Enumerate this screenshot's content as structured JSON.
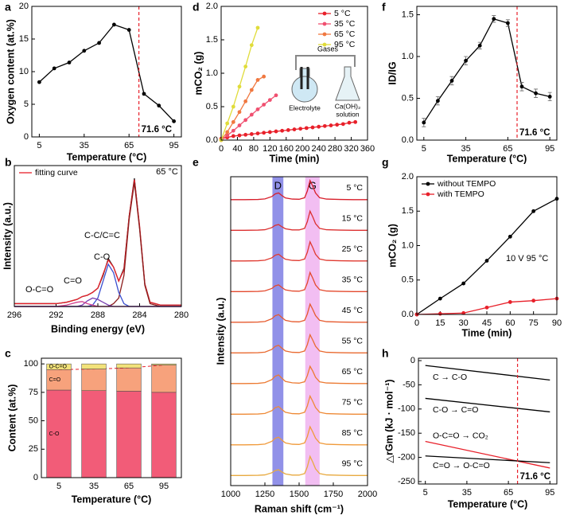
{
  "chart_data": [
    {
      "type": "line",
      "label": "a",
      "xlabel": "Temperature (°C)",
      "ylabel": "Oxygen content (at.%)",
      "x": [
        5,
        15,
        25,
        35,
        45,
        55,
        65,
        75,
        85,
        95
      ],
      "series": [
        {
          "color": "#000000",
          "markers": true,
          "values": [
            8.4,
            10.5,
            11.4,
            13.2,
            14.4,
            17.2,
            16.4,
            6.6,
            4.8,
            2.4
          ]
        }
      ],
      "xlim": [
        0,
        100
      ],
      "ylim": [
        0,
        20
      ],
      "xticks": [
        5,
        35,
        65,
        95
      ],
      "yticks": [
        0,
        5,
        10,
        15,
        20
      ],
      "vline": {
        "x": 71.6,
        "label": "71.6 °C",
        "color": "#e8202a"
      }
    },
    {
      "type": "line",
      "label": "b",
      "xlabel": "Binding energy (eV)",
      "ylabel": "Intensity (a.u.)",
      "x": [
        296,
        294,
        292,
        291,
        290,
        289.5,
        289,
        288.5,
        288,
        287.5,
        287,
        286.5,
        286,
        285.5,
        285,
        284.5,
        284,
        283.5,
        283,
        282,
        280
      ],
      "xlim": [
        296,
        280
      ],
      "ylim": [
        0,
        1
      ],
      "xticks": [
        296,
        292,
        288,
        284,
        280
      ],
      "legend": "upper left",
      "series": [
        {
          "color": "#222222",
          "values": [
            0.02,
            0.02,
            0.02,
            0.03,
            0.05,
            0.07,
            0.08,
            0.1,
            0.13,
            0.22,
            0.34,
            0.28,
            0.18,
            0.27,
            0.64,
            0.91,
            0.56,
            0.16,
            0.03,
            0.01,
            0.01
          ]
        },
        {
          "name": "fitting curve",
          "color": "#e8202a",
          "values": [
            0.02,
            0.02,
            0.02,
            0.03,
            0.05,
            0.07,
            0.08,
            0.1,
            0.13,
            0.23,
            0.33,
            0.28,
            0.18,
            0.26,
            0.64,
            0.9,
            0.57,
            0.16,
            0.03,
            0.01,
            0.01
          ]
        },
        {
          "color": "#8b1c1c",
          "values": [
            0,
            0,
            0,
            0,
            0,
            0,
            0,
            0,
            0,
            0,
            0,
            0.02,
            0.06,
            0.22,
            0.62,
            0.88,
            0.55,
            0.15,
            0.02,
            0,
            0
          ]
        },
        {
          "color": "#3a4fd0",
          "values": [
            0,
            0,
            0,
            0,
            0,
            0,
            0,
            0.01,
            0.06,
            0.18,
            0.3,
            0.24,
            0.1,
            0.02,
            0,
            0,
            0,
            0,
            0,
            0,
            0
          ]
        },
        {
          "color": "#7a3fb0",
          "values": [
            0,
            0,
            0,
            0,
            0,
            0.01,
            0.04,
            0.06,
            0.05,
            0.03,
            0.01,
            0,
            0,
            0,
            0,
            0,
            0,
            0,
            0,
            0,
            0
          ]
        },
        {
          "color": "#d04090",
          "values": [
            0,
            0,
            0,
            0.01,
            0.03,
            0.035,
            0.02,
            0.01,
            0,
            0,
            0,
            0,
            0,
            0,
            0,
            0,
            0,
            0,
            0,
            0,
            0
          ]
        }
      ],
      "annotations": [
        "65 °C",
        "C-C/C=C",
        "C-O",
        "C=O",
        "O-C=O"
      ]
    },
    {
      "type": "stacked_bar",
      "label": "c",
      "xlabel": "Temperature (°C)",
      "ylabel": "Content (at.%)",
      "categories": [
        "5",
        "35",
        "65",
        "95"
      ],
      "series": [
        {
          "name": "C-O",
          "color": "#f25c78",
          "values": [
            77,
            76.5,
            76,
            75
          ]
        },
        {
          "name": "C=O",
          "color": "#f7a27c",
          "values": [
            18,
            19,
            20.5,
            24
          ]
        },
        {
          "name": "O-C=O",
          "color": "#f2e27a",
          "values": [
            5,
            4.5,
            3.5,
            1
          ]
        }
      ],
      "ylim": [
        0,
        105
      ],
      "yticks": [
        0,
        25,
        50,
        75,
        100
      ],
      "trend_line_color": "#e8202a"
    },
    {
      "type": "line",
      "label": "d",
      "xlabel": "Time (min)",
      "ylabel": "mCO₂ (g)",
      "xlim": [
        0,
        360
      ],
      "ylim": [
        0,
        2
      ],
      "xticks": [
        0,
        40,
        80,
        120,
        160,
        200,
        240,
        280,
        320,
        360
      ],
      "yticks": [
        {
          "value": 0,
          "label": "0.0"
        },
        0.5,
        {
          "value": 1,
          "label": "1.0"
        },
        1.5,
        {
          "value": 2,
          "label": "2.0"
        }
      ],
      "legend": "upper right",
      "series": [
        {
          "name": "5 °C",
          "color": "#e8202a",
          "markers": true,
          "x": [
            0,
            15,
            30,
            45,
            60,
            75,
            90,
            105,
            120,
            135,
            150,
            165,
            180,
            195,
            210,
            225,
            240,
            255,
            270,
            285,
            300,
            315,
            330
          ],
          "values": [
            0.02,
            0.04,
            0.06,
            0.07,
            0.08,
            0.09,
            0.1,
            0.11,
            0.12,
            0.13,
            0.14,
            0.15,
            0.16,
            0.17,
            0.18,
            0.19,
            0.2,
            0.21,
            0.22,
            0.23,
            0.24,
            0.26,
            0.27
          ]
        },
        {
          "name": "35 °C",
          "color": "#f05070",
          "markers": true,
          "x": [
            0,
            15,
            30,
            45,
            60,
            75,
            90,
            105,
            120,
            135
          ],
          "values": [
            0,
            0.07,
            0.14,
            0.22,
            0.3,
            0.38,
            0.46,
            0.53,
            0.6,
            0.67
          ]
        },
        {
          "name": "65 °C",
          "color": "#f07840",
          "markers": true,
          "x": [
            0,
            15,
            30,
            45,
            60,
            75,
            90,
            105
          ],
          "values": [
            0,
            0.12,
            0.27,
            0.42,
            0.58,
            0.75,
            0.9,
            0.95
          ]
        },
        {
          "name": "95 °C",
          "color": "#e0dc3a",
          "markers": true,
          "x": [
            0,
            15,
            30,
            45,
            60,
            75,
            90
          ],
          "values": [
            0,
            0.25,
            0.5,
            0.8,
            1.1,
            1.42,
            1.68
          ]
        }
      ],
      "inset_labels": [
        "Gases",
        "Electrolyte",
        "Ca(OH)₂",
        "solution"
      ]
    },
    {
      "type": "waterfall",
      "label": "e",
      "xlabel": "Raman shift (cm⁻¹)",
      "ylabel": "Intensity (a.u.)",
      "x": [
        1000,
        1100,
        1200,
        1250,
        1300,
        1325,
        1350,
        1375,
        1400,
        1450,
        1500,
        1540,
        1560,
        1580,
        1600,
        1620,
        1650,
        1700,
        1800,
        1900,
        2000
      ],
      "xlim": [
        1000,
        2000
      ],
      "xticks": [
        1000,
        1250,
        1500,
        1750,
        2000
      ],
      "bands": [
        {
          "label": "D",
          "range": [
            1305,
            1385
          ],
          "color": "#6c6ce0"
        },
        {
          "label": "G",
          "range": [
            1545,
            1650
          ],
          "color": "#eea8ee"
        }
      ],
      "series": [
        {
          "name": "5 °C",
          "color": "#d81e2a",
          "values": [
            0.05,
            0.05,
            0.06,
            0.09,
            0.21,
            0.35,
            0.4,
            0.26,
            0.14,
            0.08,
            0.07,
            0.15,
            0.5,
            1.05,
            0.75,
            0.4,
            0.15,
            0.08,
            0.06,
            0.05,
            0.05
          ]
        },
        {
          "name": "15 °C",
          "color": "#dc3030",
          "values": [
            0.05,
            0.05,
            0.06,
            0.08,
            0.19,
            0.31,
            0.35,
            0.23,
            0.13,
            0.07,
            0.07,
            0.15,
            0.5,
            1.05,
            0.75,
            0.4,
            0.15,
            0.08,
            0.06,
            0.05,
            0.05
          ]
        },
        {
          "name": "25 °C",
          "color": "#e03a30",
          "values": [
            0.05,
            0.05,
            0.06,
            0.09,
            0.21,
            0.35,
            0.4,
            0.26,
            0.14,
            0.08,
            0.07,
            0.15,
            0.5,
            1.05,
            0.75,
            0.4,
            0.15,
            0.08,
            0.06,
            0.05,
            0.05
          ]
        },
        {
          "name": "35 °C",
          "color": "#e44a2e",
          "values": [
            0.05,
            0.05,
            0.06,
            0.09,
            0.21,
            0.35,
            0.4,
            0.26,
            0.14,
            0.08,
            0.07,
            0.15,
            0.5,
            1.05,
            0.75,
            0.4,
            0.15,
            0.08,
            0.06,
            0.05,
            0.05
          ]
        },
        {
          "name": "45 °C",
          "color": "#e65a2e",
          "values": [
            0.05,
            0.05,
            0.06,
            0.09,
            0.23,
            0.39,
            0.45,
            0.29,
            0.15,
            0.08,
            0.07,
            0.15,
            0.48,
            1.0,
            0.72,
            0.4,
            0.15,
            0.08,
            0.06,
            0.05,
            0.05
          ]
        },
        {
          "name": "55 °C",
          "color": "#e96a30",
          "values": [
            0.05,
            0.05,
            0.06,
            0.09,
            0.23,
            0.39,
            0.45,
            0.29,
            0.15,
            0.08,
            0.07,
            0.15,
            0.48,
            1.0,
            0.72,
            0.4,
            0.15,
            0.08,
            0.06,
            0.05,
            0.05
          ]
        },
        {
          "name": "65 °C",
          "color": "#ec7a32",
          "values": [
            0.05,
            0.05,
            0.06,
            0.1,
            0.25,
            0.43,
            0.5,
            0.32,
            0.16,
            0.09,
            0.07,
            0.14,
            0.46,
            0.95,
            0.7,
            0.38,
            0.14,
            0.08,
            0.06,
            0.05,
            0.05
          ]
        },
        {
          "name": "75 °C",
          "color": "#ee8a36",
          "values": [
            0.05,
            0.05,
            0.06,
            0.09,
            0.23,
            0.39,
            0.45,
            0.29,
            0.15,
            0.08,
            0.07,
            0.15,
            0.48,
            1.0,
            0.72,
            0.4,
            0.15,
            0.08,
            0.06,
            0.05,
            0.05
          ]
        },
        {
          "name": "85 °C",
          "color": "#f09a3a",
          "values": [
            0.05,
            0.05,
            0.06,
            0.09,
            0.23,
            0.39,
            0.45,
            0.29,
            0.15,
            0.08,
            0.07,
            0.15,
            0.48,
            1.0,
            0.72,
            0.4,
            0.15,
            0.08,
            0.06,
            0.05,
            0.05
          ]
        },
        {
          "name": "95 °C",
          "color": "#e8aa40",
          "values": [
            0.05,
            0.05,
            0.06,
            0.08,
            0.19,
            0.31,
            0.35,
            0.23,
            0.13,
            0.07,
            0.07,
            0.15,
            0.5,
            1.05,
            0.75,
            0.4,
            0.15,
            0.08,
            0.06,
            0.05,
            0.05
          ]
        }
      ]
    },
    {
      "type": "line",
      "label": "f",
      "xlabel": "Temperature (°C)",
      "ylabel": "ID/IG",
      "x": [
        5,
        15,
        25,
        35,
        45,
        55,
        65,
        75,
        85,
        95
      ],
      "series": [
        {
          "color": "#000000",
          "markers": true,
          "values": [
            0.21,
            0.47,
            0.71,
            0.95,
            1.13,
            1.45,
            1.4,
            0.64,
            0.56,
            0.52
          ],
          "errors": [
            0.05,
            0.05,
            0.05,
            0.05,
            0.04,
            0.04,
            0.04,
            0.05,
            0.05,
            0.05
          ]
        }
      ],
      "xlim": [
        0,
        100
      ],
      "ylim": [
        0,
        1.6
      ],
      "xticks": [
        5,
        35,
        65,
        95
      ],
      "yticks": [
        {
          "value": 0,
          "label": "0.0"
        },
        0.5,
        {
          "value": 1,
          "label": "1.0"
        },
        1.5
      ],
      "vline": {
        "x": 71.6,
        "label": "71.6 °C",
        "color": "#e8202a"
      }
    },
    {
      "type": "line",
      "label": "g",
      "xlabel": "Time (min)",
      "ylabel": "mCO₂ (g)",
      "x": [
        0,
        15,
        30,
        45,
        60,
        75,
        90
      ],
      "series": [
        {
          "name": "without TEMPO",
          "color": "#000000",
          "markers": true,
          "values": [
            0,
            0.23,
            0.45,
            0.78,
            1.13,
            1.5,
            1.68
          ]
        },
        {
          "name": "with TEMPO",
          "color": "#e8202a",
          "markers": true,
          "values": [
            0,
            0.01,
            0.02,
            0.1,
            0.18,
            0.2,
            0.23
          ]
        }
      ],
      "xlim": [
        0,
        90
      ],
      "ylim": [
        0,
        2
      ],
      "xticks": [
        0,
        15,
        30,
        45,
        60,
        75,
        90
      ],
      "yticks": [
        {
          "value": 0,
          "label": "0.0"
        },
        0.5,
        {
          "value": 1,
          "label": "1.0"
        },
        1.5,
        {
          "value": 2,
          "label": "2.0"
        }
      ],
      "legend": "upper left",
      "annotations": [
        "10 V 95 °C"
      ]
    },
    {
      "type": "line",
      "label": "h",
      "xlabel": "Temperature (°C)",
      "ylabel": "△rGm (kJ · mol⁻¹)",
      "x": [
        5,
        95
      ],
      "inline_labels": true,
      "series": [
        {
          "name": "C → C-O",
          "color": "#000000",
          "values": [
            -10,
            -40
          ]
        },
        {
          "name": "C-O → C=O",
          "color": "#000000",
          "values": [
            -78,
            -106
          ]
        },
        {
          "name": "O-C=O → CO₂",
          "color": "#e8202a",
          "values": [
            -167,
            -222
          ]
        },
        {
          "name": "C=O → O-C=O",
          "color": "#000000",
          "values": [
            -197,
            -211
          ]
        }
      ],
      "xlim": [
        0,
        100
      ],
      "ylim": [
        -255,
        5
      ],
      "xticks": [
        5,
        35,
        65,
        95
      ],
      "yticks": [
        0,
        -50,
        -100,
        -150,
        -200,
        -250
      ],
      "vline": {
        "x": 71.6,
        "label": "71.6 °C",
        "color": "#e8202a"
      }
    }
  ]
}
